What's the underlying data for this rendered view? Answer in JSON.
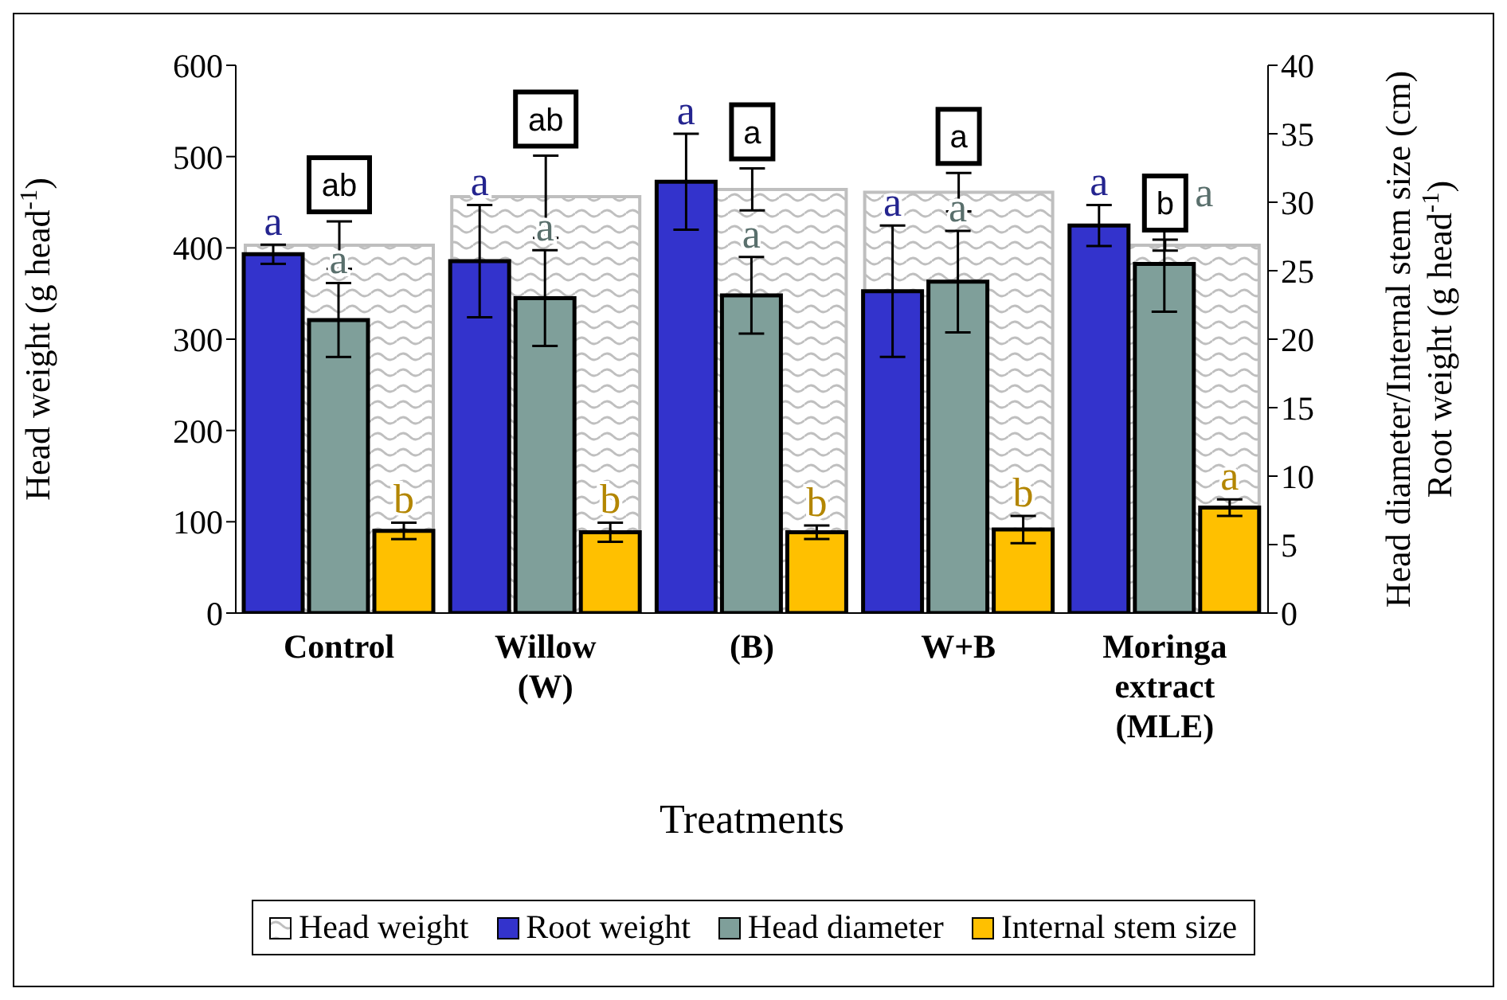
{
  "chart_data": {
    "type": "bar",
    "xlabel": "Treatments",
    "ylabel": "Head weight (g head$^{-1}$)",
    "y2label": "Head diameter/Internal stem size (cm)\nRoot weight (g head$^{-1}$)",
    "categories": [
      "Control",
      "Willow (W)",
      "(B)",
      "W+B",
      "Moringa extract (MLE)"
    ],
    "series": [
      {
        "name": "Head weight",
        "color": "#bfbfbf",
        "values": [
          403,
          456,
          464,
          461,
          403
        ],
        "errors": [
          26,
          45,
          23,
          21,
          6
        ],
        "value_labels": [
          "ab",
          "ab",
          "a",
          "a",
          "b"
        ]
      },
      {
        "name": "Root weight",
        "color": "#3333cc",
        "axis": "y2",
        "values": [
          26.2,
          25.7,
          31.5,
          23.5,
          28.3
        ],
        "errors": [
          0.7,
          4.1,
          3.5,
          4.8,
          1.5
        ],
        "value_labels": [
          "a",
          "a",
          "a",
          "a",
          "a"
        ]
      },
      {
        "name": "Head diameter",
        "color": "#7f9f9a",
        "axis": "y2",
        "values": [
          21.4,
          23.0,
          23.2,
          24.2,
          25.5
        ],
        "errors": [
          2.7,
          3.5,
          2.8,
          3.7,
          3.5
        ],
        "value_labels": [
          "a",
          "a",
          "a",
          "a",
          "a"
        ]
      },
      {
        "name": "Internal stem size",
        "color": "#ffc000",
        "axis": "y2",
        "values": [
          6.0,
          5.9,
          5.9,
          6.1,
          7.7
        ],
        "errors": [
          0.6,
          0.7,
          0.5,
          1.0,
          0.6
        ],
        "value_labels": [
          "b",
          "b",
          "b",
          "b",
          "a"
        ]
      }
    ],
    "ylim": [
      0,
      600
    ],
    "yticks": [
      0,
      100,
      200,
      300,
      400,
      500,
      600
    ],
    "y2lim": [
      0,
      40
    ],
    "y2ticks": [
      0,
      5,
      10,
      15,
      20,
      25,
      30,
      35,
      40
    ],
    "legend": "bottom"
  }
}
